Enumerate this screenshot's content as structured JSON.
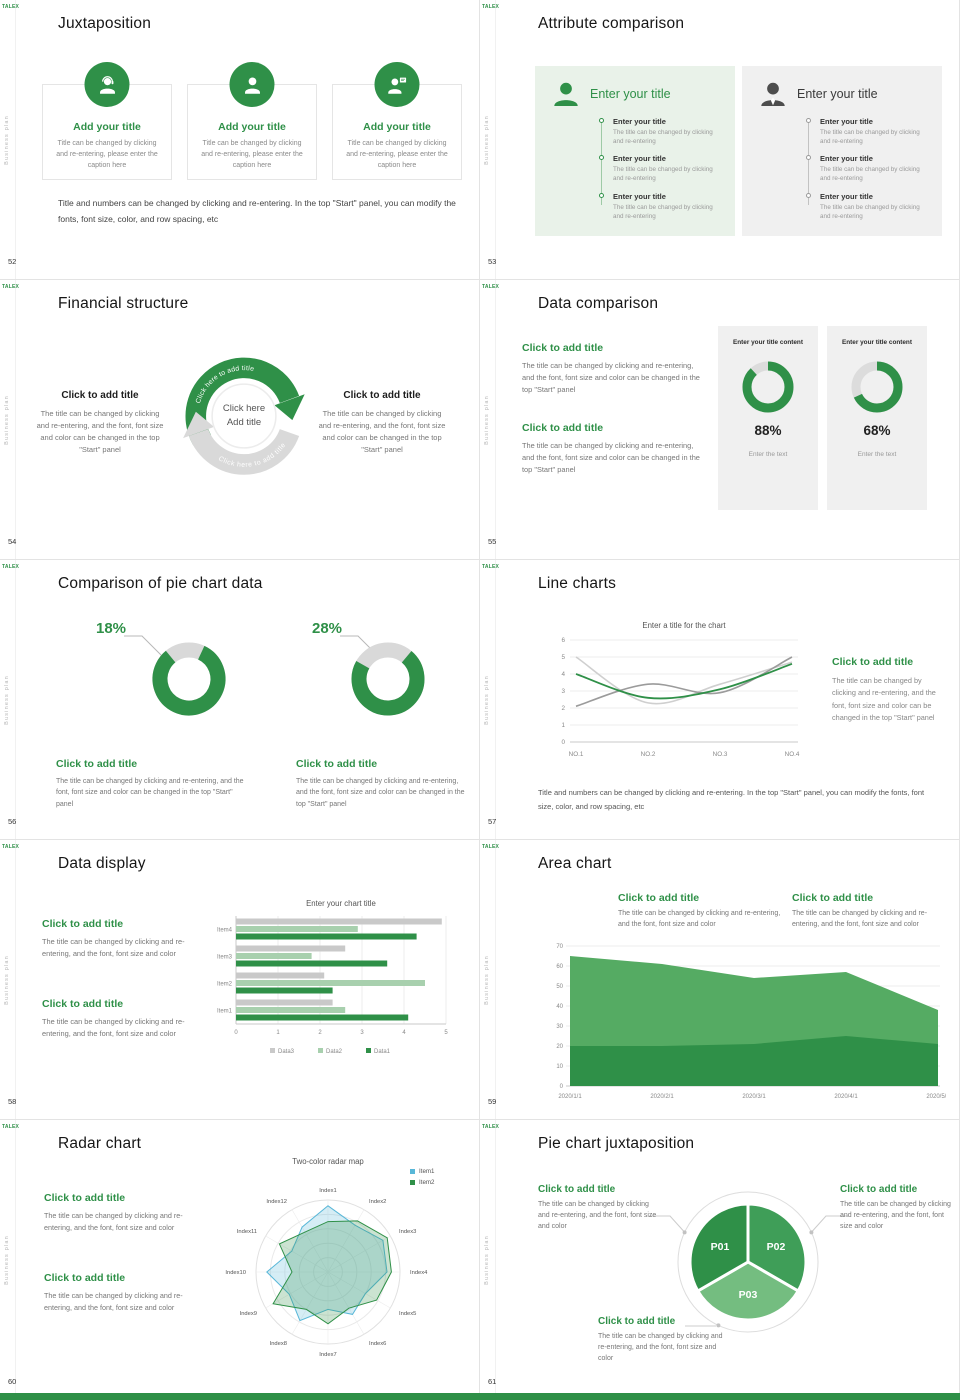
{
  "brand": {
    "logo": "TALEX",
    "vertical_text": "Business plan",
    "accent": "#2f9048"
  },
  "s52": {
    "num": "52",
    "title": "Juxtaposition",
    "cards": [
      {
        "icon": "support-agent-icon",
        "heading": "Add your title",
        "caption": "Title can be changed by clicking and re-entering, please enter the caption here"
      },
      {
        "icon": "user-icon",
        "heading": "Add your title",
        "caption": "Title can be changed by clicking and re-entering, please enter the caption here"
      },
      {
        "icon": "presenter-icon",
        "heading": "Add your title",
        "caption": "Title can be changed by clicking and re-entering, please enter the caption here"
      }
    ],
    "footer": "Title and numbers can be changed by clicking and re-entering. In the top \"Start\" panel, you can modify the fonts, font size, color, and row spacing, etc"
  },
  "s53": {
    "num": "53",
    "title": "Attribute comparison",
    "left": {
      "heading": "Enter your title",
      "items": [
        {
          "title": "Enter your title",
          "body": "The title can be changed by clicking and re-entering"
        },
        {
          "title": "Enter your title",
          "body": "The title can be changed by clicking and re-entering"
        },
        {
          "title": "Enter your title",
          "body": "The title can be changed by clicking and re-entering"
        }
      ]
    },
    "right": {
      "heading": "Enter your title",
      "items": [
        {
          "title": "Enter your title",
          "body": "The title can be changed by clicking and re-entering"
        },
        {
          "title": "Enter your title",
          "body": "The title can be changed by clicking and re-entering"
        },
        {
          "title": "Enter your title",
          "body": "The title can be changed by clicking and re-entering"
        }
      ]
    }
  },
  "s54": {
    "num": "54",
    "title": "Financial structure",
    "center_line1": "Click here",
    "center_line2": "Add title",
    "arc_top_label": "Click here to add title",
    "arc_bottom_label": "Click here to add title",
    "left": {
      "heading": "Click to add title",
      "body": "The title can be changed by clicking and re-entering, and the font, font size and color can be changed in the top \"Start\" panel"
    },
    "right": {
      "heading": "Click to add title",
      "body": "The title can be changed by clicking and re-entering, and the font, font size and color can be changed in the top \"Start\" panel"
    }
  },
  "s55": {
    "num": "55",
    "title": "Data comparison",
    "sections": [
      {
        "heading": "Click to add title",
        "body": "The title can be changed by clicking and re-entering, and the font, font size and color can be changed in the top \"Start\" panel"
      },
      {
        "heading": "Click to add title",
        "body": "The title can be changed by clicking and re-entering, and the font, font size and color can be changed in the top \"Start\" panel"
      }
    ],
    "cards": [
      {
        "header": "Enter your title content",
        "value": 88,
        "pct": "88%",
        "caption": "Enter the text"
      },
      {
        "header": "Enter your title content",
        "value": 68,
        "pct": "68%",
        "caption": "Enter the text"
      }
    ]
  },
  "s56": {
    "num": "56",
    "title": "Comparison of pie chart data",
    "donuts": [
      {
        "pct": "18%",
        "gray": 18,
        "green": 82
      },
      {
        "pct": "28%",
        "gray": 28,
        "green": 72
      }
    ],
    "sections": [
      {
        "heading": "Click to add title",
        "body": "The title can be changed by clicking and re-entering, and the font, font size and color can be changed in the top \"Start\" panel"
      },
      {
        "heading": "Click to add title",
        "body": "The title can be changed by clicking and re-entering, and the font, font size and color can be changed in the top \"Start\" panel"
      }
    ]
  },
  "s57": {
    "num": "57",
    "title": "Line charts",
    "chart": {
      "type": "line",
      "title": "Enter a title for the chart",
      "x_labels": [
        "NO.1",
        "NO.2",
        "NO.3",
        "NO.4"
      ],
      "y_ticks": [
        0,
        1,
        2,
        3,
        4,
        5,
        6
      ],
      "ylim": [
        0,
        6
      ],
      "series": [
        {
          "name": "series-light",
          "color": "#cfcfcf",
          "values": [
            5,
            2.3,
            3.4,
            4.7
          ]
        },
        {
          "name": "series-gray",
          "color": "#9b9b9b",
          "values": [
            2.1,
            3.4,
            2.9,
            5
          ]
        },
        {
          "name": "series-green",
          "color": "#2f9048",
          "values": [
            4,
            2.6,
            3.1,
            4.6
          ]
        }
      ]
    },
    "side": {
      "heading": "Click to add title",
      "body": "The title can be changed by clicking and re-entering, and the font, font size and color can be changed in the top \"Start\" panel"
    },
    "footer": "Title and numbers can be changed by clicking and re-entering. In the top \"Start\" panel, you can modify the fonts, font size, color, and row spacing, etc"
  },
  "s58": {
    "num": "58",
    "title": "Data display",
    "sections": [
      {
        "heading": "Click to add title",
        "body": "The title can be changed by clicking and re-entering, and the font, font size and color"
      },
      {
        "heading": "Click to add title",
        "body": "The title can be changed by clicking and re-entering, and the font, font size and color"
      }
    ],
    "chart": {
      "type": "bar",
      "title": "Enter your chart title",
      "categories": [
        "Item1",
        "Item2",
        "Item3",
        "Item4"
      ],
      "x_ticks": [
        0,
        1,
        2,
        3,
        4,
        5
      ],
      "xlim": [
        0,
        5
      ],
      "series": [
        {
          "name": "Data3",
          "color": "#c9c9c9",
          "values": [
            2.3,
            2.1,
            2.6,
            4.9
          ]
        },
        {
          "name": "Data2",
          "color": "#a8d0ae",
          "values": [
            2.6,
            4.5,
            1.8,
            2.9
          ]
        },
        {
          "name": "Data1",
          "color": "#2f9048",
          "values": [
            4.1,
            2.3,
            3.6,
            4.3
          ]
        }
      ]
    }
  },
  "s59": {
    "num": "59",
    "title": "Area chart",
    "sections": [
      {
        "heading": "Click to add title",
        "body": "The title can be changed by clicking and re-entering, and the font, font size and color"
      },
      {
        "heading": "Click to add title",
        "body": "The title can be changed by clicking and re-entering, and the font, font size and color"
      }
    ],
    "chart": {
      "type": "area",
      "x_labels": [
        "2020/1/1",
        "2020/2/1",
        "2020/3/1",
        "2020/4/1",
        "2020/5/1"
      ],
      "y_ticks": [
        0,
        10,
        20,
        30,
        40,
        50,
        60,
        70
      ],
      "ylim": [
        0,
        70
      ],
      "series": [
        {
          "name": "upper",
          "color": "#55ab63",
          "values": [
            65,
            61,
            54,
            57,
            38
          ]
        },
        {
          "name": "lower",
          "color": "#2f9048",
          "values": [
            20,
            20,
            21,
            25,
            21
          ]
        }
      ]
    }
  },
  "s60": {
    "num": "60",
    "title": "Radar chart",
    "sections": [
      {
        "heading": "Click to add title",
        "body": "The title can be changed by clicking and re-entering, and the font, font size and color"
      },
      {
        "heading": "Click to add title",
        "body": "The title can be changed by clicking and re-entering, and the font, font size and color"
      }
    ],
    "chart": {
      "type": "radar",
      "title": "Two-color radar map",
      "axes": [
        "Index1",
        "Index2",
        "Index3",
        "Index4",
        "Index5",
        "Index6",
        "Index7",
        "Index8",
        "Index9",
        "Index10",
        "Index11",
        "Index12"
      ],
      "series": [
        {
          "name": "Item1",
          "color": "#58b7d8",
          "values": [
            0.92,
            0.75,
            0.88,
            0.82,
            0.6,
            0.68,
            0.52,
            0.78,
            0.62,
            0.85,
            0.58,
            0.72
          ]
        },
        {
          "name": "Item2",
          "color": "#2f9048",
          "values": [
            0.7,
            0.82,
            0.95,
            0.88,
            0.78,
            0.58,
            0.72,
            0.6,
            0.88,
            0.5,
            0.78,
            0.64
          ]
        }
      ]
    }
  },
  "s61": {
    "num": "61",
    "title": "Pie chart juxtaposition",
    "slices": [
      {
        "label": "P01",
        "color": "#2f9048"
      },
      {
        "label": "P02",
        "color": "#3f9e58"
      },
      {
        "label": "P03",
        "color": "#74bd80"
      }
    ],
    "callouts": [
      {
        "heading": "Click to add title",
        "body": "The title can be changed by clicking and re-entering, and the font, font size and color"
      },
      {
        "heading": "Click to add title",
        "body": "The title can be changed by clicking and re-entering, and the font, font size and color"
      },
      {
        "heading": "Click to add title",
        "body": "The title can be changed by clicking and re-entering, and the font, font size and color"
      }
    ]
  }
}
